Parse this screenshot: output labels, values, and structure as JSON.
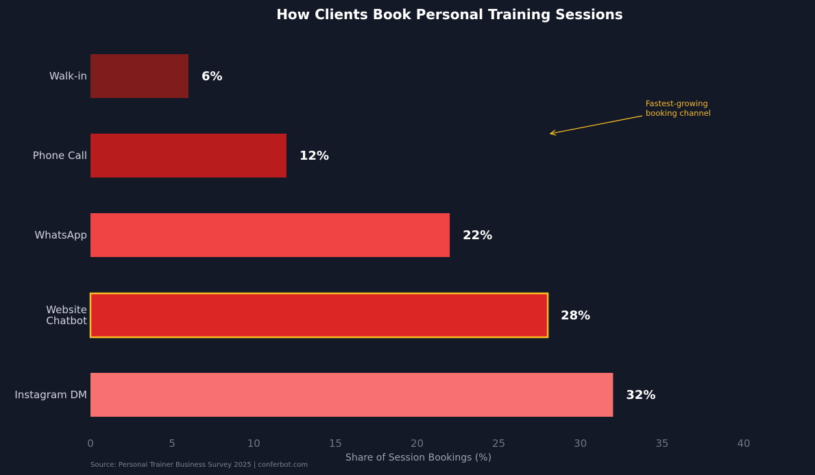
{
  "chart_data": {
    "type": "bar",
    "orientation": "horizontal",
    "title": "How Clients Book Personal Training Sessions",
    "xlabel": "Share of Session Bookings (%)",
    "ylabel": "",
    "xlim": [
      0,
      40
    ],
    "x_ticks": [
      0,
      5,
      10,
      15,
      20,
      25,
      30,
      35,
      40
    ],
    "grid": false,
    "categories": [
      "Instagram DM",
      "Website Chatbot",
      "WhatsApp",
      "Phone Call",
      "Walk-in"
    ],
    "category_label_lines": [
      [
        "Instagram DM"
      ],
      [
        "Website",
        "Chatbot"
      ],
      [
        "WhatsApp"
      ],
      [
        "Phone Call"
      ],
      [
        "Walk-in"
      ]
    ],
    "values": [
      32,
      28,
      22,
      12,
      6
    ],
    "value_labels": [
      "32%",
      "28%",
      "22%",
      "12%",
      "6%"
    ],
    "colors": [
      "#f87171",
      "#dc2626",
      "#ef4444",
      "#b91c1c",
      "#7f1d1d"
    ],
    "highlight": {
      "category": "Website Chatbot",
      "outline_color": "#fbbf24"
    },
    "annotation": {
      "lines": [
        "Fastest-growing",
        "booking channel"
      ],
      "color": "#fbbf24"
    },
    "source": "Source: Personal Trainer Business Survey 2025  |  conferbot.com"
  }
}
